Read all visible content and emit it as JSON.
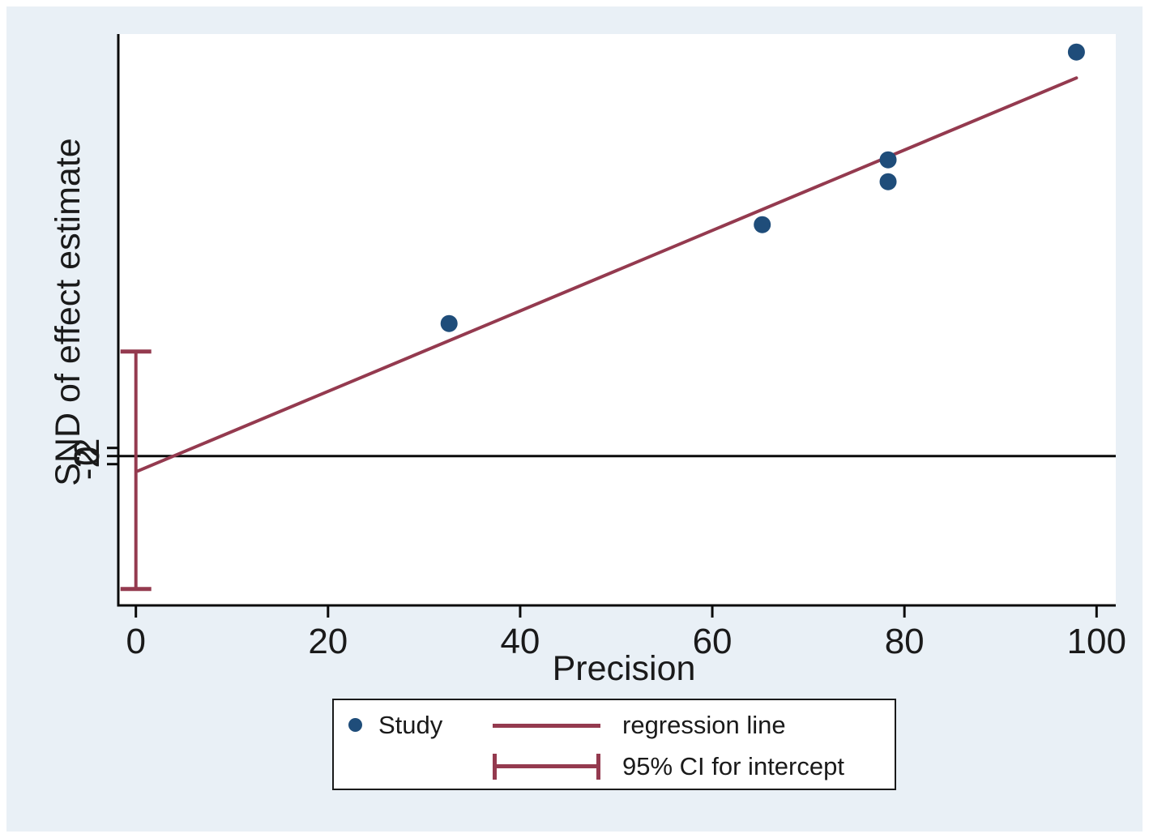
{
  "colors": {
    "background": "#e9f0f6",
    "plot_background": "#ffffff",
    "marker": "#1f4d7a",
    "line": "#943a4f",
    "axis": "#0a0a0a",
    "text": "#1a1a1a"
  },
  "chart_data": {
    "type": "scatter",
    "title": "",
    "xlabel": "Precision",
    "ylabel": "SND of effect estimate",
    "x_ticks": [
      0,
      20,
      40,
      60,
      80,
      100
    ],
    "y_ticks": [
      -2,
      0,
      2
    ],
    "xlim": [
      0,
      102
    ],
    "ylim": [
      -37,
      104
    ],
    "grid": false,
    "legend_position": "bottom-center",
    "points": [
      {
        "x": 32.6,
        "y": 32.7
      },
      {
        "x": 65.2,
        "y": 57.1
      },
      {
        "x": 78.3,
        "y": 67.7
      },
      {
        "x": 78.3,
        "y": 73.1
      },
      {
        "x": 97.9,
        "y": 99.7
      }
    ],
    "regression_line": {
      "x_start": 0.2,
      "y_start": -3.7,
      "x_end": 97.9,
      "y_end": 93.3,
      "slope": 0.99,
      "intercept": -3.8
    },
    "ci_for_intercept": {
      "x": 0,
      "lower": -32.8,
      "upper": 25.8
    },
    "reference_line_y": 0,
    "legend": [
      {
        "marker": "dot",
        "label": "Study"
      },
      {
        "marker": "line",
        "label": "regression line"
      },
      {
        "marker": "ci",
        "label": "95% CI for intercept"
      }
    ]
  }
}
